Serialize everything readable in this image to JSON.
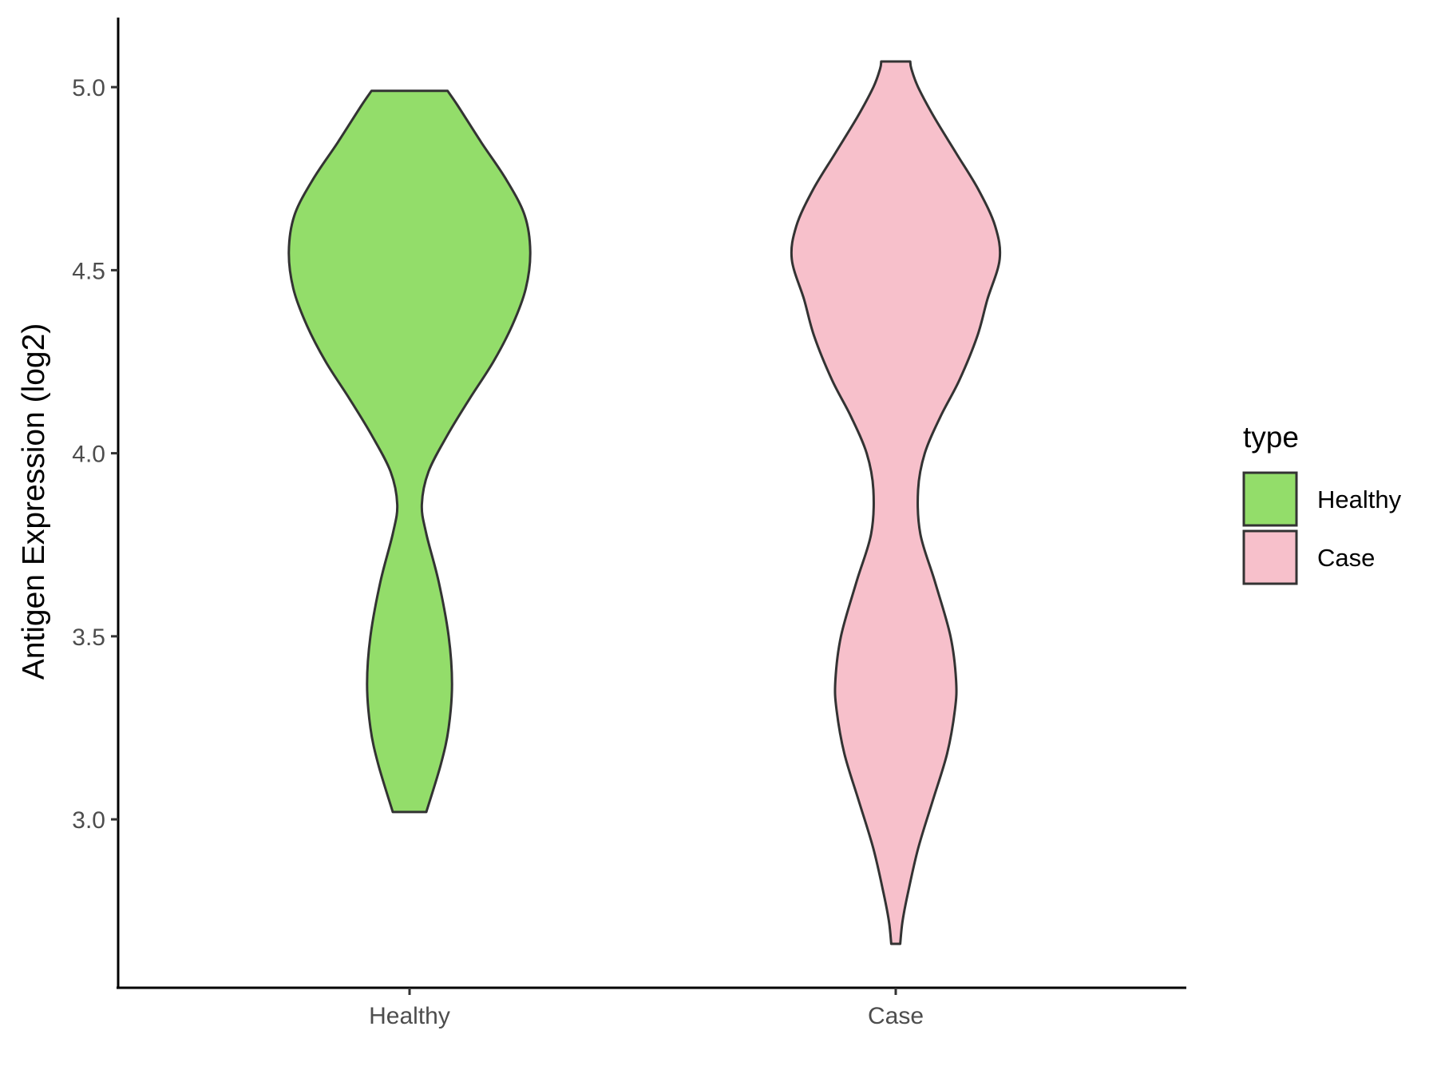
{
  "chart_data": {
    "type": "violin",
    "ylabel": "Antigen Expression (log2)",
    "xlabel": "",
    "ylim": [
      2.54,
      5.19
    ],
    "yticks": [
      3.0,
      3.5,
      4.0,
      4.5,
      5.0
    ],
    "ytick_labels": [
      "3.0",
      "3.5",
      "4.0",
      "4.5",
      "5.0"
    ],
    "categories": [
      "Healthy",
      "Case"
    ],
    "grid": false,
    "legend": {
      "title": "type",
      "position": "right",
      "entries": [
        {
          "label": "Healthy",
          "color": "#93dd6a"
        },
        {
          "label": "Case",
          "color": "#f7c0cb"
        }
      ]
    },
    "series": [
      {
        "name": "Healthy",
        "color": "#93dd6a",
        "min": 3.02,
        "max": 4.99,
        "density": [
          [
            3.02,
            0.075
          ],
          [
            3.15,
            0.14
          ],
          [
            3.25,
            0.175
          ],
          [
            3.37,
            0.19
          ],
          [
            3.5,
            0.175
          ],
          [
            3.65,
            0.13
          ],
          [
            3.78,
            0.075
          ],
          [
            3.86,
            0.055
          ],
          [
            3.95,
            0.085
          ],
          [
            4.05,
            0.17
          ],
          [
            4.15,
            0.27
          ],
          [
            4.25,
            0.375
          ],
          [
            4.35,
            0.46
          ],
          [
            4.45,
            0.52
          ],
          [
            4.55,
            0.54
          ],
          [
            4.65,
            0.515
          ],
          [
            4.75,
            0.43
          ],
          [
            4.85,
            0.32
          ],
          [
            4.95,
            0.215
          ],
          [
            4.99,
            0.17
          ]
        ]
      },
      {
        "name": "Case",
        "color": "#f7c0cb",
        "min": 2.66,
        "max": 5.07,
        "density": [
          [
            2.66,
            0.02
          ],
          [
            2.72,
            0.03
          ],
          [
            2.8,
            0.055
          ],
          [
            2.92,
            0.1
          ],
          [
            3.05,
            0.165
          ],
          [
            3.18,
            0.23
          ],
          [
            3.3,
            0.265
          ],
          [
            3.38,
            0.27
          ],
          [
            3.5,
            0.245
          ],
          [
            3.65,
            0.175
          ],
          [
            3.78,
            0.11
          ],
          [
            3.9,
            0.1
          ],
          [
            4.0,
            0.13
          ],
          [
            4.1,
            0.2
          ],
          [
            4.2,
            0.285
          ],
          [
            4.32,
            0.365
          ],
          [
            4.42,
            0.41
          ],
          [
            4.53,
            0.465
          ],
          [
            4.62,
            0.445
          ],
          [
            4.72,
            0.37
          ],
          [
            4.82,
            0.27
          ],
          [
            4.92,
            0.17
          ],
          [
            5.0,
            0.1
          ],
          [
            5.05,
            0.07
          ],
          [
            5.07,
            0.065
          ]
        ]
      }
    ]
  }
}
